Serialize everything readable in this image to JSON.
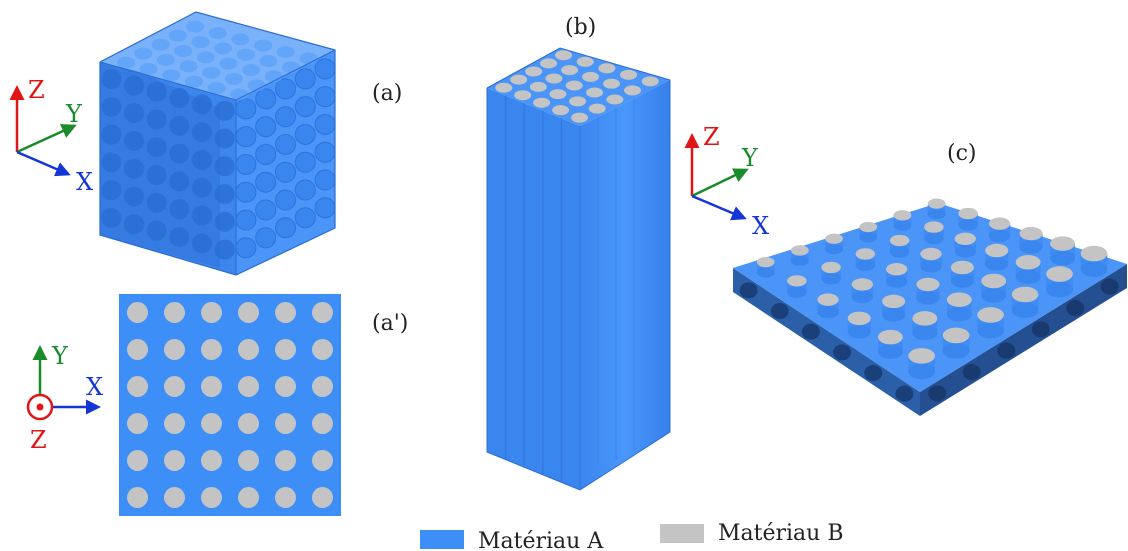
{
  "panels": {
    "a": "(a)",
    "a_prime": "(a')",
    "b": "(b)",
    "c": "(c)"
  },
  "axes": {
    "x": "X",
    "y": "Y",
    "z": "Z"
  },
  "legend": [
    {
      "label": "Matériau A",
      "color": "#3d8ef7"
    },
    {
      "label": "Matériau B",
      "color": "#c4c4c4"
    }
  ],
  "colors": {
    "material_a": "#3d8ef7",
    "material_a_dark": "#2b6fd4",
    "material_b": "#c4c4c4",
    "axis_x": "#1436d6",
    "axis_y": "#1a8a2a",
    "axis_z": "#e01515"
  }
}
